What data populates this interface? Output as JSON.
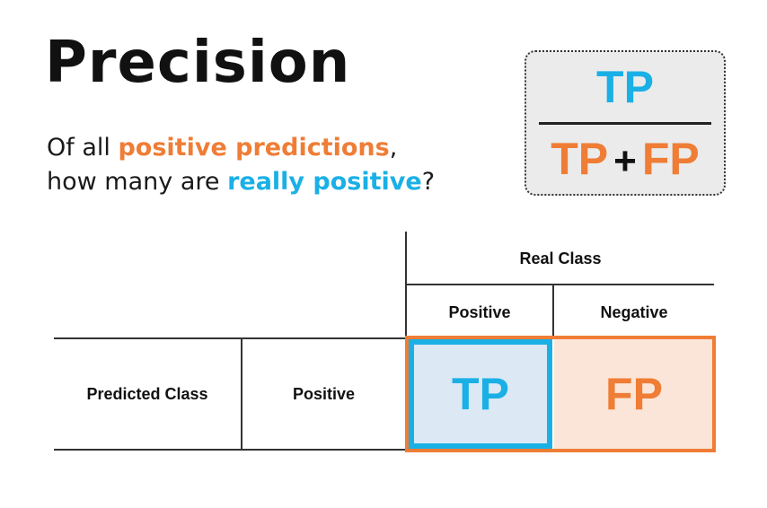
{
  "title": "Precision",
  "subtitle": {
    "line1_prefix": "Of all ",
    "line1_highlight": "positive predictions",
    "line1_suffix": ",",
    "line2_prefix": "how many are ",
    "line2_highlight": "really positive",
    "line2_suffix": "?"
  },
  "formula": {
    "numerator": "TP",
    "denominator_left": "TP",
    "operator": "+",
    "denominator_right": "FP"
  },
  "table": {
    "header_group": "Real Class",
    "header_positive": "Positive",
    "header_negative": "Negative",
    "row_group": "Predicted Class",
    "row_positive": "Positive",
    "cell_tp": "TP",
    "cell_fp": "FP"
  },
  "colors": {
    "orange": "#ef7d36",
    "blue": "#1ab0e6",
    "tp_fill": "#dce8f4",
    "fp_fill": "#fbe5d8"
  }
}
